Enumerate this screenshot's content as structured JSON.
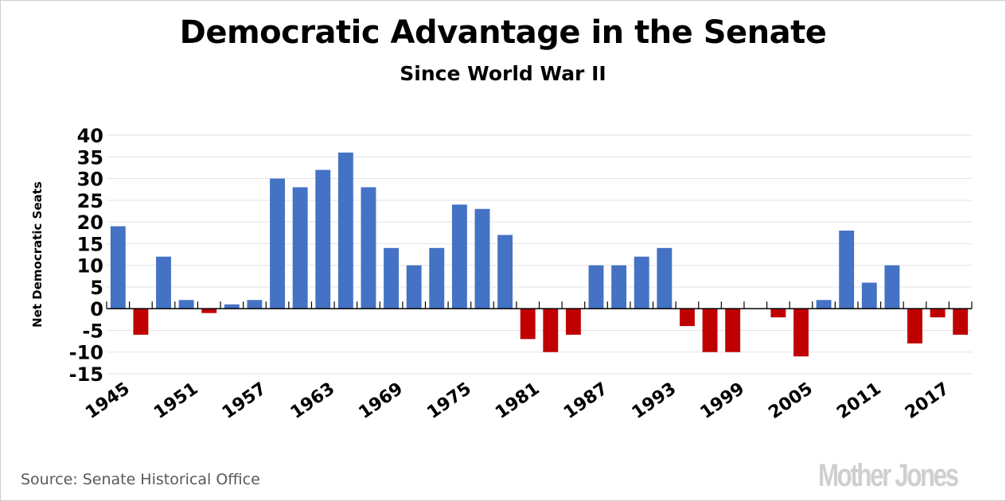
{
  "colors": {
    "positive": "#4472c4",
    "negative": "#c00000",
    "gridline": "#e3e3e3",
    "axis": "#000000",
    "source_text": "#595959",
    "logo_text": "#cfcfcf"
  },
  "footer": {
    "source": "Source: Senate Historical Office",
    "logo": "Mother Jones"
  },
  "chart_data": {
    "type": "bar",
    "title": "Democratic Advantage in the Senate",
    "subtitle": "Since World War II",
    "xlabel": "",
    "ylabel": "Net Democratic Seats",
    "ylim": [
      -15,
      40
    ],
    "yticks": [
      40,
      35,
      30,
      25,
      20,
      15,
      10,
      5,
      0,
      -5,
      -10,
      -15
    ],
    "grid": true,
    "legend": "none",
    "categories": [
      1945,
      1947,
      1949,
      1951,
      1953,
      1955,
      1957,
      1959,
      1961,
      1963,
      1965,
      1967,
      1969,
      1971,
      1973,
      1975,
      1977,
      1979,
      1981,
      1983,
      1985,
      1987,
      1989,
      1991,
      1993,
      1995,
      1997,
      1999,
      2001,
      2003,
      2005,
      2007,
      2009,
      2011,
      2013,
      2015,
      2017,
      2019
    ],
    "xtick_labels": [
      "1945",
      "1951",
      "1957",
      "1963",
      "1969",
      "1975",
      "1981",
      "1987",
      "1993",
      "1999",
      "2005",
      "2011",
      "2017"
    ],
    "values": [
      19,
      -6,
      12,
      2,
      -1,
      1,
      2,
      30,
      28,
      32,
      36,
      28,
      14,
      10,
      14,
      24,
      23,
      17,
      -7,
      -10,
      -6,
      10,
      10,
      12,
      14,
      -4,
      -10,
      -10,
      0,
      -2,
      -11,
      2,
      18,
      6,
      10,
      -8,
      -2,
      -6
    ]
  }
}
